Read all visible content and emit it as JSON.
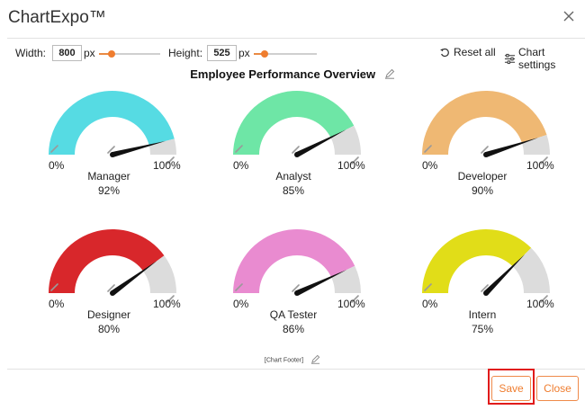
{
  "window": {
    "app_title": "ChartExpo™",
    "close_icon": "close-icon"
  },
  "toolbar": {
    "width_label": "Width:",
    "width_value": "800",
    "width_unit": "px",
    "height_label": "Height:",
    "height_value": "525",
    "height_unit": "px",
    "reset_label": "Reset all",
    "settings_label": "Chart settings",
    "slider_color": "#ef7d2f",
    "width_slider_level": 0.2,
    "height_slider_level": 0.17
  },
  "chart": {
    "title": "Employee Performance Overview",
    "footer": "[Chart Footer]",
    "min_label": "0%",
    "max_label": "100%"
  },
  "chart_data": {
    "type": "gauge",
    "ylim": [
      0,
      100
    ],
    "gauges": [
      {
        "name": "Manager",
        "value": 92,
        "value_label": "92%",
        "color": "#56dbe3"
      },
      {
        "name": "Analyst",
        "value": 85,
        "value_label": "85%",
        "color": "#6ee6a6"
      },
      {
        "name": "Developer",
        "value": 90,
        "value_label": "90%",
        "color": "#efb873"
      },
      {
        "name": "Designer",
        "value": 80,
        "value_label": "80%",
        "color": "#d8272b"
      },
      {
        "name": "QA Tester",
        "value": 86,
        "value_label": "86%",
        "color": "#e98bd0"
      },
      {
        "name": "Intern",
        "value": 75,
        "value_label": "75%",
        "color": "#e1dd18"
      }
    ],
    "remainder_color": "#dcdcdc",
    "needle_color": "#111111"
  },
  "actions": {
    "save_label": "Save",
    "close_label": "Close"
  }
}
